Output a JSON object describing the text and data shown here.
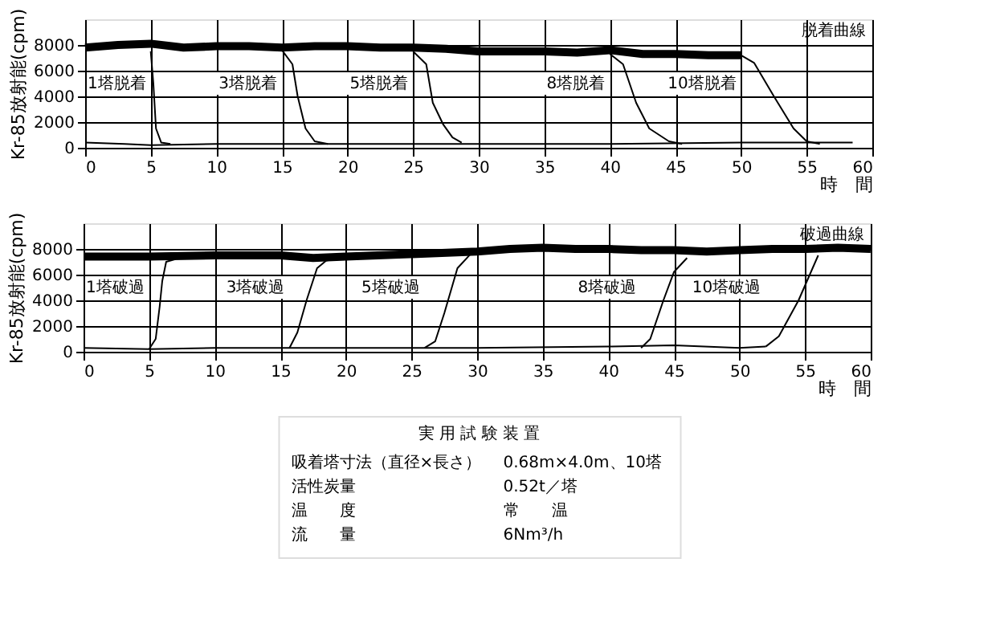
{
  "chart_data": [
    {
      "type": "line",
      "xlabel": "時　間",
      "ylabel": "Kr-85放射能(cpm)",
      "xlim": [
        0,
        60
      ],
      "ylim": [
        0,
        10000
      ],
      "xticks": [
        0,
        5,
        10,
        15,
        20,
        25,
        30,
        35,
        40,
        45,
        50,
        55,
        60
      ],
      "yticks": [
        0,
        2000,
        4000,
        6000,
        8000
      ],
      "grid": true,
      "annotations": [
        "脱着曲線",
        "1塔脱着",
        "3塔脱着",
        "5塔脱着",
        "8塔脱着",
        "10塔脱着"
      ],
      "series": [
        {
          "color": "#000000",
          "x": [
            0,
            2.5,
            5,
            7.5,
            10,
            12.5,
            15,
            17.5,
            20,
            22.5,
            25,
            27.5,
            30,
            32.5,
            35,
            37.5,
            40,
            42.5,
            45,
            47.5,
            50
          ],
          "values": [
            7800,
            8000,
            8100,
            7800,
            7900,
            7900,
            7800,
            7900,
            7900,
            7800,
            7800,
            7700,
            7500,
            7500,
            7500,
            7400,
            7600,
            7300,
            7300,
            7200,
            7200
          ]
        },
        {
          "color": "#000000",
          "x": [
            5,
            5.2,
            5.4,
            5.8,
            6.5
          ],
          "values": [
            7500,
            5000,
            1500,
            400,
            300
          ]
        },
        {
          "color": "#000000",
          "x": [
            15,
            15.8,
            16.2,
            16.8,
            17.5,
            18.5
          ],
          "values": [
            7600,
            6500,
            4000,
            1500,
            500,
            300
          ]
        },
        {
          "color": "#000000",
          "x": [
            25,
            26,
            26.5,
            27.3,
            28,
            28.7
          ],
          "values": [
            7500,
            6500,
            3500,
            1800,
            800,
            400
          ]
        },
        {
          "color": "#000000",
          "x": [
            40,
            41,
            42,
            43,
            44.5,
            45.5
          ],
          "values": [
            7300,
            6500,
            3500,
            1500,
            500,
            300
          ]
        },
        {
          "color": "#000000",
          "x": [
            50,
            51,
            52.5,
            54,
            55,
            56
          ],
          "values": [
            7200,
            6600,
            4000,
            1500,
            500,
            300
          ]
        },
        {
          "color": "#000000",
          "x": [
            0,
            3,
            5,
            10,
            20,
            30,
            40,
            50,
            55,
            58.5
          ],
          "values": [
            400,
            300,
            200,
            300,
            300,
            300,
            300,
            400,
            400,
            400
          ]
        }
      ]
    },
    {
      "type": "line",
      "xlabel": "時　間",
      "ylabel": "Kr-85放射能(cpm)",
      "xlim": [
        0,
        60
      ],
      "ylim": [
        0,
        10000
      ],
      "xticks": [
        0,
        5,
        10,
        15,
        20,
        25,
        30,
        35,
        40,
        45,
        50,
        55,
        60
      ],
      "yticks": [
        0,
        2000,
        4000,
        6000,
        8000
      ],
      "grid": true,
      "annotations": [
        "破過曲線",
        "1塔破過",
        "3塔破過",
        "5塔破過",
        "8塔破過",
        "10塔破過"
      ],
      "series": [
        {
          "color": "#000000",
          "x": [
            0,
            5,
            10,
            15,
            17.5,
            20,
            25,
            30,
            32.5,
            35,
            37.5,
            40,
            42.5,
            45,
            47.5,
            50,
            52.5,
            55,
            57.5,
            60
          ],
          "values": [
            7400,
            7400,
            7500,
            7500,
            7300,
            7400,
            7600,
            7800,
            8000,
            8100,
            8000,
            8000,
            7900,
            7900,
            7800,
            7900,
            8000,
            8000,
            8100,
            8000
          ]
        },
        {
          "color": "#000000",
          "x": [
            5,
            5.5,
            5.8,
            6,
            6.3,
            7
          ],
          "values": [
            200,
            1000,
            3500,
            5500,
            7000,
            7200
          ]
        },
        {
          "color": "#000000",
          "x": [
            15.7,
            16.3,
            17,
            17.8,
            18.5,
            19.5
          ],
          "values": [
            300,
            1500,
            4000,
            6500,
            7100,
            7300
          ]
        },
        {
          "color": "#000000",
          "x": [
            26,
            26.8,
            27.5,
            28.5,
            29.5
          ],
          "values": [
            300,
            800,
            3000,
            6500,
            7600
          ]
        },
        {
          "color": "#000000",
          "x": [
            42.5,
            43.2,
            44.2,
            45,
            46
          ],
          "values": [
            300,
            1000,
            4000,
            6200,
            7300
          ]
        },
        {
          "color": "#000000",
          "x": [
            52,
            53,
            54.5,
            56
          ],
          "values": [
            400,
            1200,
            4000,
            7500
          ]
        },
        {
          "color": "#000000",
          "x": [
            0,
            5,
            10,
            20,
            30,
            40,
            45,
            50,
            52
          ],
          "values": [
            300,
            200,
            300,
            300,
            300,
            400,
            500,
            300,
            400
          ]
        }
      ]
    },
    {
      "type": "other",
      "title": "実 用 試 験 装 置",
      "annotations": [
        "吸着塔寸法（直径×長さ）",
        "0.68m×4.0m、10塔",
        "活性炭量",
        "0.52t／塔",
        "温　　度",
        "常　　温",
        "流　　量",
        "6Nm³/h"
      ]
    }
  ]
}
